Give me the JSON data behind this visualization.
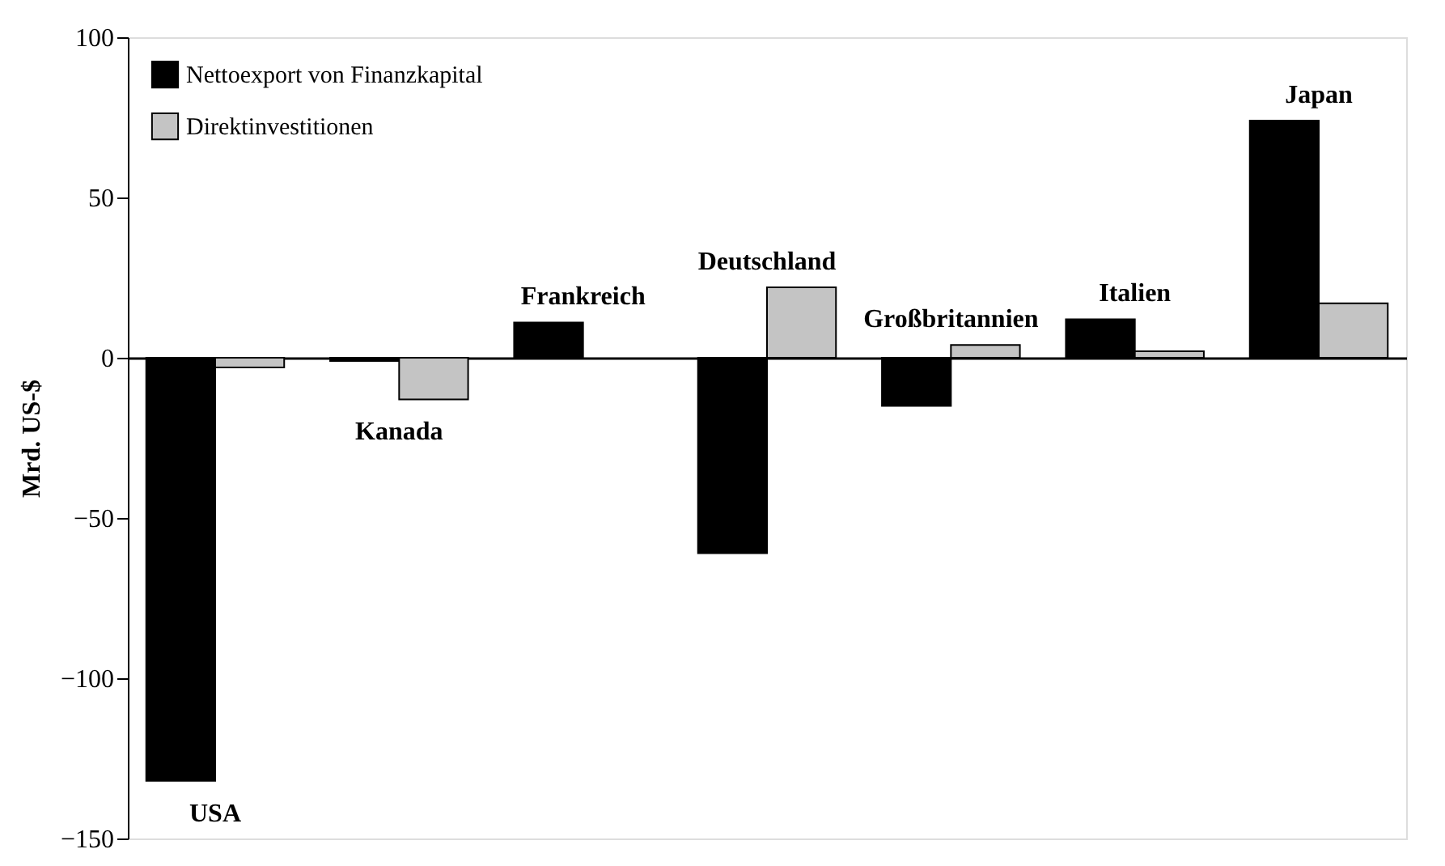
{
  "chart_data": {
    "type": "bar",
    "ylabel": "Mrd. US-$",
    "categories": [
      "USA",
      "Kanada",
      "Frankreich",
      "Deutschland",
      "Großbritannien",
      "Italien",
      "Japan"
    ],
    "series": [
      {
        "name": "Nettoexport von Finanzkapital",
        "color": "#000000",
        "values": [
          -132,
          -1,
          11,
          -61,
          -15,
          12,
          74
        ]
      },
      {
        "name": "Direktinvestitionen",
        "color": "#c4c4c4",
        "values": [
          -3,
          -13,
          null,
          22,
          4,
          2,
          17
        ]
      }
    ],
    "ylim": [
      -150,
      100
    ],
    "yticks": [
      -150,
      -100,
      -50,
      0,
      50,
      100
    ],
    "tick_labels": "y",
    "grid": false,
    "legend": "top left"
  }
}
